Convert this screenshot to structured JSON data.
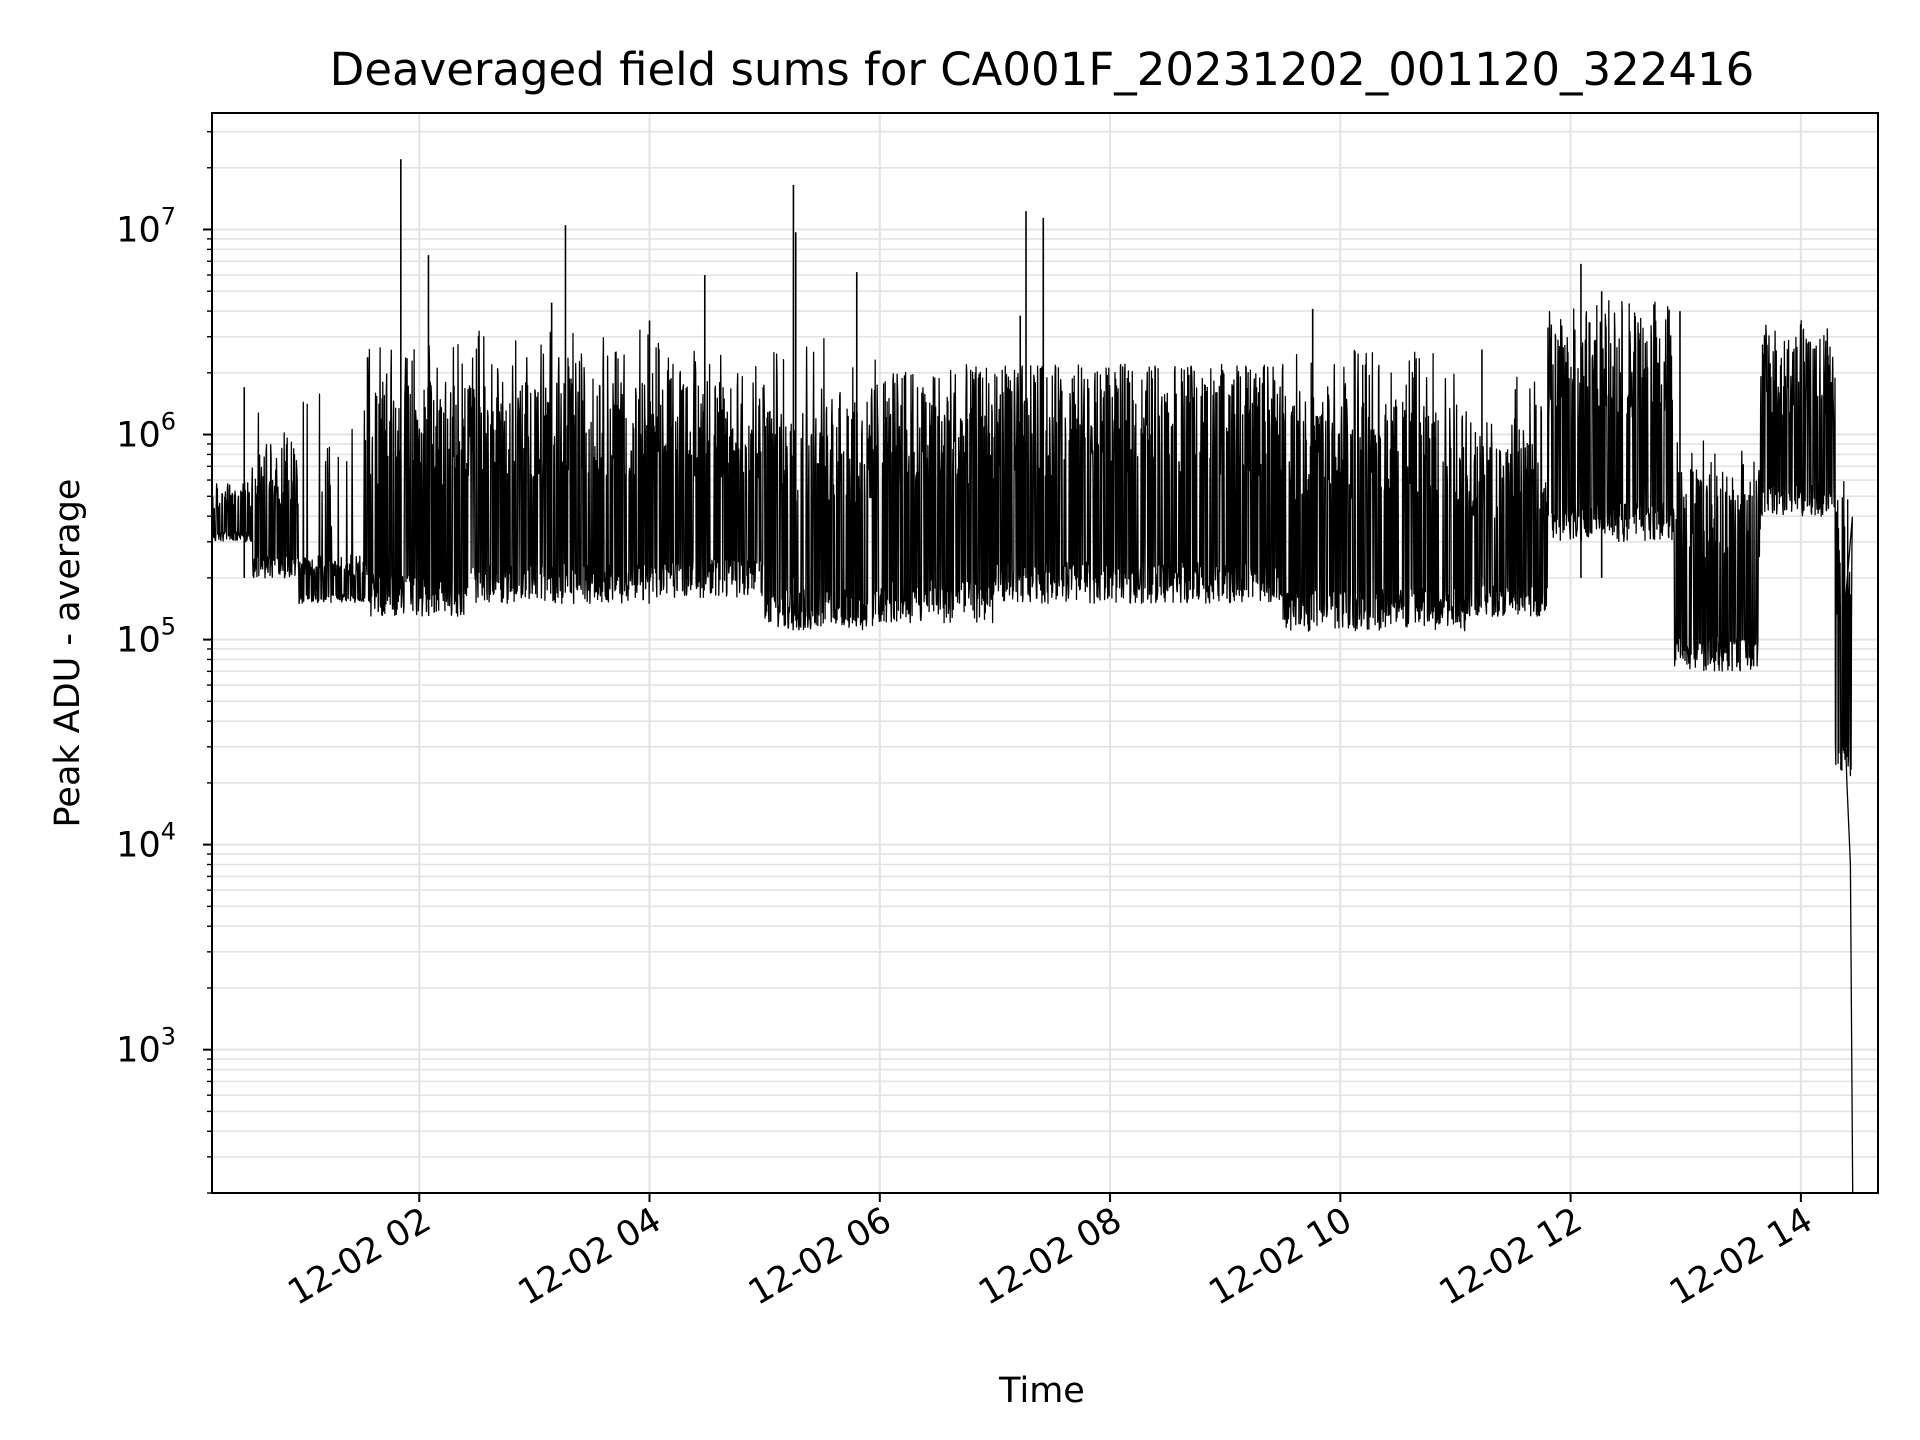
{
  "chart_data": {
    "type": "line",
    "title": "Deaveraged field sums for CA001F_20231202_001120_322416",
    "xlabel": "Time",
    "ylabel": "Peak ADU - average",
    "x_tick_labels": [
      "12-02 02",
      "12-02 04",
      "12-02 06",
      "12-02 08",
      "12-02 10",
      "12-02 12",
      "12-02 14"
    ],
    "x_tick_hours": [
      2,
      4,
      6,
      8,
      10,
      12,
      14
    ],
    "x_range_hours": [
      0.2,
      14.67
    ],
    "y_scale": "log",
    "y_range": [
      200,
      37000000
    ],
    "y_tick_base": "10",
    "y_tick_exponents": [
      "3",
      "4",
      "5",
      "6",
      "7"
    ],
    "grid": true,
    "line_color": "#000000",
    "grid_color": "#e3e3e3",
    "series": [
      {
        "name": "",
        "segments": [
          {
            "from_hour": 0.2,
            "to_hour": 0.55,
            "low": 300000,
            "high": 550000,
            "spike": 600000
          },
          {
            "from_hour": 0.55,
            "to_hour": 0.95,
            "low": 200000,
            "high": 900000,
            "spike": 1700000
          },
          {
            "from_hour": 0.95,
            "to_hour": 1.55,
            "low": 150000,
            "high": 260000,
            "spike": 1700000
          },
          {
            "from_hour": 1.55,
            "to_hour": 2.4,
            "low": 130000,
            "high": 1800000,
            "spike": 2800000
          },
          {
            "from_hour": 2.4,
            "to_hour": 4.0,
            "low": 150000,
            "high": 1800000,
            "spike": 3600000
          },
          {
            "from_hour": 4.0,
            "to_hour": 5.0,
            "low": 160000,
            "high": 1800000,
            "spike": 2800000
          },
          {
            "from_hour": 5.0,
            "to_hour": 6.0,
            "low": 110000,
            "high": 1500000,
            "spike": 3000000
          },
          {
            "from_hour": 6.0,
            "to_hour": 7.0,
            "low": 120000,
            "high": 1800000,
            "spike": 2200000
          },
          {
            "from_hour": 7.0,
            "to_hour": 9.5,
            "low": 150000,
            "high": 2000000,
            "spike": 2200000
          },
          {
            "from_hour": 9.5,
            "to_hour": 11.1,
            "low": 110000,
            "high": 1600000,
            "spike": 2700000
          },
          {
            "from_hour": 11.1,
            "to_hour": 11.8,
            "low": 130000,
            "high": 900000,
            "spike": 2000000
          },
          {
            "from_hour": 11.8,
            "to_hour": 12.9,
            "low": 300000,
            "high": 3500000,
            "spike": 4500000
          },
          {
            "from_hour": 12.9,
            "to_hour": 13.65,
            "low": 70000,
            "high": 700000,
            "spike": 1000000
          },
          {
            "from_hour": 13.65,
            "to_hour": 14.3,
            "low": 400000,
            "high": 3000000,
            "spike": 3600000
          },
          {
            "from_hour": 14.3,
            "to_hour": 14.45,
            "low": 20000,
            "high": 400000,
            "spike": 600000
          }
        ],
        "tail": [
          {
            "hour": 14.36,
            "value": 100000
          },
          {
            "hour": 14.4,
            "value": 20000
          },
          {
            "hour": 14.43,
            "value": 8000
          },
          {
            "hour": 14.45,
            "value": 200
          }
        ],
        "peaks": [
          {
            "hour": 0.48,
            "value": 1700000
          },
          {
            "hour": 1.84,
            "value": 22000000
          },
          {
            "hour": 2.08,
            "value": 7500000
          },
          {
            "hour": 3.15,
            "value": 4400000
          },
          {
            "hour": 3.27,
            "value": 10500000
          },
          {
            "hour": 4.0,
            "value": 3600000
          },
          {
            "hour": 4.48,
            "value": 6000000
          },
          {
            "hour": 5.25,
            "value": 16500000
          },
          {
            "hour": 5.27,
            "value": 9700000
          },
          {
            "hour": 5.8,
            "value": 6200000
          },
          {
            "hour": 7.22,
            "value": 3800000
          },
          {
            "hour": 7.27,
            "value": 12300000
          },
          {
            "hour": 7.42,
            "value": 11400000
          },
          {
            "hour": 9.76,
            "value": 4100000
          },
          {
            "hour": 11.23,
            "value": 2600000
          },
          {
            "hour": 12.09,
            "value": 6800000
          },
          {
            "hour": 12.27,
            "value": 5000000
          },
          {
            "hour": 12.95,
            "value": 4000000
          }
        ]
      }
    ]
  }
}
